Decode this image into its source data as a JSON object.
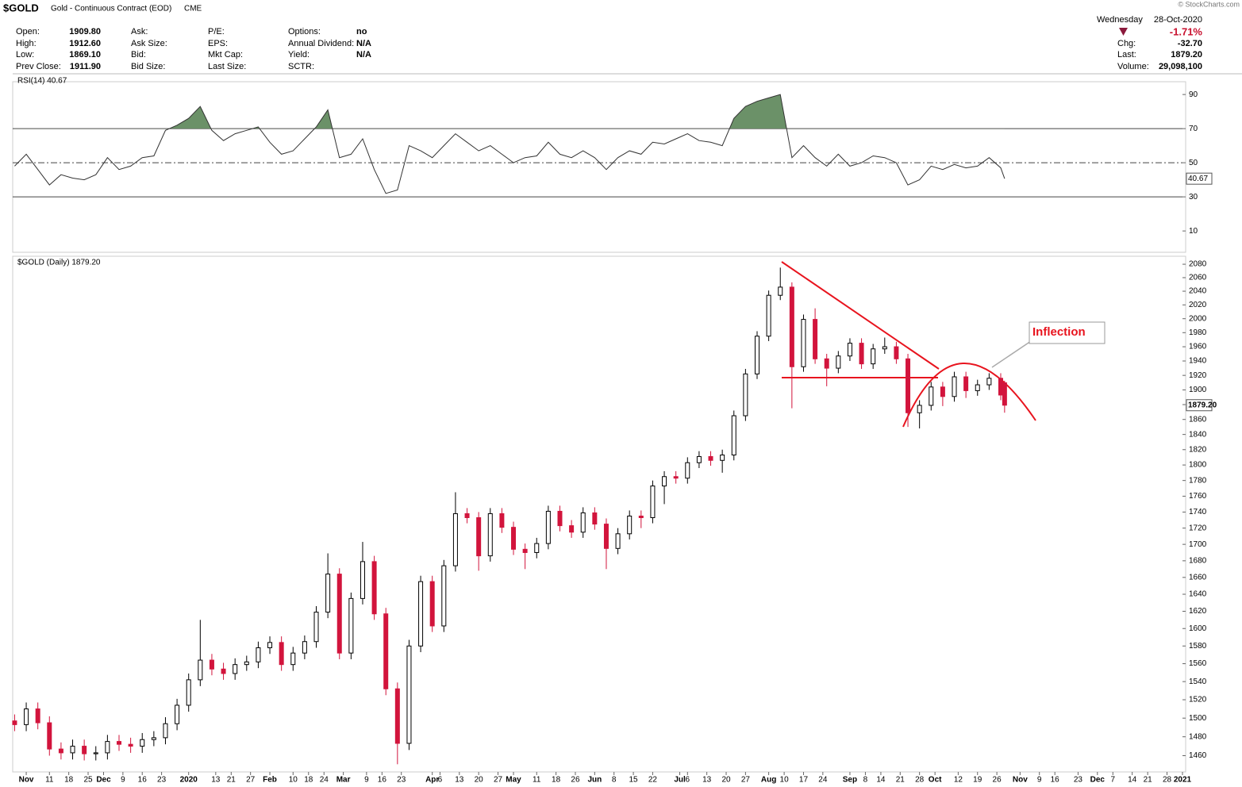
{
  "header": {
    "symbol": "$GOLD",
    "name": "Gold - Continuous Contract (EOD)",
    "exchange": "CME",
    "fields": [
      [
        {
          "label": "Open:",
          "value": "1909.80"
        },
        {
          "label": "High:",
          "value": "1912.60"
        },
        {
          "label": "Low:",
          "value": "1869.10"
        },
        {
          "label": "Prev Close:",
          "value": "1911.90"
        }
      ],
      [
        {
          "label": "Ask:"
        },
        {
          "label": "Ask Size:"
        },
        {
          "label": "Bid:"
        },
        {
          "label": "Bid Size:"
        }
      ],
      [
        {
          "label": "P/E:"
        },
        {
          "label": "EPS:"
        },
        {
          "label": "Mkt Cap:"
        },
        {
          "label": "Last Size:"
        }
      ],
      [
        {
          "label": "Options:",
          "value": "no"
        },
        {
          "label": "Annual Dividend:",
          "value": "N/A"
        },
        {
          "label": "Yield:",
          "value": "N/A"
        },
        {
          "label": "SCTR:"
        }
      ]
    ],
    "day": "Wednesday",
    "date": "28-Oct-2020",
    "change_pct": "-1.71%",
    "right_fields": [
      {
        "label": "Chg:",
        "value": "-32.70"
      },
      {
        "label": "Last:",
        "value": "1879.20"
      },
      {
        "label": "Volume:",
        "value": "29,098,100"
      }
    ],
    "watermark": "© StockCharts.com"
  },
  "chart_data": [
    {
      "type": "line",
      "title": "RSI(14) 40.67",
      "last_tag": "40.67",
      "color": "#333333",
      "fill_color": "#6b9168",
      "ylim": [
        -2.5,
        97.5
      ],
      "yticks": [
        10,
        30,
        50,
        70,
        90
      ],
      "xlim": [
        -0.5,
        302
      ],
      "overbought": 70,
      "oversold": 30,
      "midline": 50,
      "x": [
        0,
        3,
        6,
        9,
        12,
        15,
        18,
        21,
        24,
        27,
        30,
        33,
        36,
        39,
        42,
        45,
        48,
        51,
        54,
        57,
        60,
        63,
        66,
        69,
        72,
        75,
        78,
        81,
        84,
        87,
        90,
        93,
        96,
        99,
        102,
        105,
        108,
        111,
        114,
        117,
        120,
        123,
        126,
        129,
        132,
        135,
        138,
        141,
        144,
        147,
        150,
        153,
        156,
        159,
        162,
        165,
        168,
        171,
        174,
        177,
        180,
        183,
        186,
        189,
        192,
        195,
        198,
        201,
        204,
        207,
        210,
        213,
        216,
        219,
        222,
        225,
        228,
        231,
        234,
        237,
        240,
        243,
        246,
        249,
        252,
        255,
        256
      ],
      "values": [
        48,
        55,
        46,
        37,
        43,
        41,
        40,
        43,
        53,
        46,
        48,
        53,
        54,
        69,
        72,
        76,
        83,
        69,
        63,
        67,
        69,
        71,
        62,
        55,
        57,
        64,
        71,
        81,
        53,
        55,
        64,
        46,
        32,
        34,
        60,
        57,
        53,
        60,
        67,
        62,
        57,
        60,
        55,
        50,
        53,
        54,
        62,
        55,
        53,
        57,
        53,
        46,
        53,
        57,
        55,
        62,
        61,
        64,
        67,
        63,
        62,
        60,
        76,
        83,
        86,
        88,
        90,
        53,
        60,
        53,
        48,
        55,
        48,
        50,
        54,
        53,
        50,
        37,
        40,
        48,
        46,
        49,
        47,
        48,
        53,
        47,
        40.67
      ]
    },
    {
      "type": "candlestick",
      "title": "$GOLD (Daily) 1879.20",
      "last_tag": "1879.20",
      "up_color": "#000000",
      "down_color": "#d2143c",
      "log_scale": true,
      "ylim": [
        1443,
        2092
      ],
      "xlim": [
        -0.5,
        302
      ],
      "yticks": [
        1460,
        1480,
        1500,
        1520,
        1540,
        1560,
        1580,
        1600,
        1620,
        1640,
        1660,
        1680,
        1700,
        1720,
        1740,
        1760,
        1780,
        1800,
        1820,
        1840,
        1860,
        1880,
        1900,
        1920,
        1940,
        1960,
        1980,
        2000,
        2020,
        2040,
        2060,
        2080
      ],
      "xticks": [
        {
          "value": 3,
          "label": "Nov"
        },
        {
          "value": 9,
          "label": "11"
        },
        {
          "value": 14,
          "label": "18"
        },
        {
          "value": 19,
          "label": "25"
        },
        {
          "value": 23,
          "label": "Dec"
        },
        {
          "value": 28,
          "label": "9"
        },
        {
          "value": 33,
          "label": "16"
        },
        {
          "value": 38,
          "label": "23"
        },
        {
          "value": 45,
          "label": "2020"
        },
        {
          "value": 52,
          "label": "13"
        },
        {
          "value": 56,
          "label": "21"
        },
        {
          "value": 61,
          "label": "27"
        },
        {
          "value": 66,
          "label": "Feb"
        },
        {
          "value": 72,
          "label": "10"
        },
        {
          "value": 76,
          "label": "18"
        },
        {
          "value": 80,
          "label": "24"
        },
        {
          "value": 85,
          "label": "Mar"
        },
        {
          "value": 91,
          "label": "9"
        },
        {
          "value": 95,
          "label": "16"
        },
        {
          "value": 100,
          "label": "23"
        },
        {
          "value": 108,
          "label": "Apr"
        },
        {
          "value": 110,
          "label": "6"
        },
        {
          "value": 115,
          "label": "13"
        },
        {
          "value": 120,
          "label": "20"
        },
        {
          "value": 125,
          "label": "27"
        },
        {
          "value": 129,
          "label": "May"
        },
        {
          "value": 135,
          "label": "11"
        },
        {
          "value": 140,
          "label": "18"
        },
        {
          "value": 145,
          "label": "26"
        },
        {
          "value": 150,
          "label": "Jun"
        },
        {
          "value": 155,
          "label": "8"
        },
        {
          "value": 160,
          "label": "15"
        },
        {
          "value": 165,
          "label": "22"
        },
        {
          "value": 172,
          "label": "Jul"
        },
        {
          "value": 174,
          "label": "6"
        },
        {
          "value": 179,
          "label": "13"
        },
        {
          "value": 184,
          "label": "20"
        },
        {
          "value": 189,
          "label": "27"
        },
        {
          "value": 195,
          "label": "Aug"
        },
        {
          "value": 199,
          "label": "10"
        },
        {
          "value": 204,
          "label": "17"
        },
        {
          "value": 209,
          "label": "24"
        },
        {
          "value": 216,
          "label": "Sep"
        },
        {
          "value": 220,
          "label": "8"
        },
        {
          "value": 224,
          "label": "14"
        },
        {
          "value": 229,
          "label": "21"
        },
        {
          "value": 234,
          "label": "28"
        },
        {
          "value": 238,
          "label": "Oct"
        },
        {
          "value": 244,
          "label": "12"
        },
        {
          "value": 249,
          "label": "19"
        },
        {
          "value": 254,
          "label": "26"
        },
        {
          "value": 260,
          "label": "Nov"
        },
        {
          "value": 265,
          "label": "9"
        },
        {
          "value": 269,
          "label": "16"
        },
        {
          "value": 275,
          "label": "23"
        },
        {
          "value": 280,
          "label": "Dec"
        },
        {
          "value": 284,
          "label": "7"
        },
        {
          "value": 289,
          "label": "14"
        },
        {
          "value": 293,
          "label": "21"
        },
        {
          "value": 298,
          "label": "28"
        },
        {
          "value": 302,
          "label": "2021"
        }
      ],
      "x": [
        0,
        3,
        6,
        9,
        12,
        15,
        18,
        21,
        24,
        27,
        30,
        33,
        36,
        39,
        42,
        45,
        48,
        51,
        54,
        57,
        60,
        63,
        66,
        69,
        72,
        75,
        78,
        81,
        84,
        87,
        90,
        93,
        96,
        99,
        102,
        105,
        108,
        111,
        114,
        117,
        120,
        123,
        126,
        129,
        132,
        135,
        138,
        141,
        144,
        147,
        150,
        153,
        156,
        159,
        162,
        165,
        168,
        171,
        174,
        177,
        180,
        183,
        186,
        189,
        192,
        195,
        198,
        201,
        204,
        207,
        210,
        213,
        216,
        219,
        222,
        225,
        228,
        231,
        234,
        237,
        240,
        243,
        246,
        249,
        252,
        255,
        256
      ],
      "open": [
        1497,
        1493,
        1510,
        1495,
        1467,
        1463,
        1470,
        1462,
        1463,
        1475,
        1472,
        1470,
        1477,
        1479,
        1494,
        1514,
        1542,
        1564,
        1554,
        1549,
        1559,
        1562,
        1578,
        1584,
        1559,
        1572,
        1585,
        1619,
        1664,
        1572,
        1635,
        1679,
        1617,
        1532,
        1473,
        1580,
        1655,
        1603,
        1674,
        1738,
        1733,
        1686,
        1738,
        1721,
        1694,
        1690,
        1701,
        1741,
        1723,
        1715,
        1739,
        1725,
        1695,
        1713,
        1735,
        1733,
        1773,
        1785,
        1783,
        1803,
        1811,
        1806,
        1813,
        1865,
        1922,
        1975,
        2034,
        2046,
        1932,
        1999,
        1943,
        1930,
        1947,
        1965,
        1936,
        1957,
        1960,
        1943,
        1869,
        1879,
        1904,
        1891,
        1918,
        1899,
        1907,
        1916,
        1909.8
      ],
      "high": [
        1504,
        1517,
        1517,
        1502,
        1474,
        1477,
        1477,
        1470,
        1482,
        1482,
        1479,
        1484,
        1486,
        1501,
        1521,
        1549,
        1610,
        1571,
        1561,
        1566,
        1569,
        1585,
        1591,
        1591,
        1579,
        1592,
        1626,
        1689,
        1671,
        1642,
        1703,
        1686,
        1624,
        1539,
        1587,
        1662,
        1662,
        1681,
        1765,
        1745,
        1740,
        1745,
        1745,
        1728,
        1701,
        1708,
        1748,
        1748,
        1730,
        1746,
        1746,
        1732,
        1720,
        1742,
        1742,
        1780,
        1792,
        1792,
        1810,
        1818,
        1818,
        1820,
        1872,
        1929,
        1982,
        2041,
        2075,
        2053,
        2006,
        2015,
        1950,
        1954,
        1972,
        1972,
        1964,
        1973,
        1967,
        1950,
        1886,
        1911,
        1911,
        1925,
        1925,
        1914,
        1923,
        1923,
        1912.6
      ],
      "low": [
        1486,
        1486,
        1488,
        1460,
        1456,
        1456,
        1455,
        1455,
        1456,
        1465,
        1463,
        1463,
        1470,
        1472,
        1487,
        1507,
        1535,
        1547,
        1542,
        1542,
        1552,
        1555,
        1571,
        1552,
        1552,
        1565,
        1578,
        1612,
        1565,
        1565,
        1628,
        1610,
        1525,
        1451,
        1466,
        1573,
        1596,
        1596,
        1667,
        1726,
        1668,
        1679,
        1714,
        1687,
        1670,
        1683,
        1694,
        1716,
        1708,
        1708,
        1718,
        1670,
        1688,
        1706,
        1720,
        1726,
        1750,
        1776,
        1776,
        1796,
        1799,
        1790,
        1806,
        1858,
        1915,
        1968,
        2027,
        1875,
        1925,
        1936,
        1905,
        1923,
        1940,
        1929,
        1929,
        1950,
        1936,
        1850,
        1848,
        1872,
        1878,
        1884,
        1889,
        1892,
        1900,
        1886,
        1869.1
      ],
      "close": [
        1493,
        1510,
        1495,
        1467,
        1463,
        1470,
        1462,
        1463,
        1475,
        1472,
        1470,
        1477,
        1479,
        1494,
        1514,
        1542,
        1564,
        1554,
        1549,
        1559,
        1562,
        1578,
        1584,
        1559,
        1572,
        1585,
        1619,
        1664,
        1572,
        1635,
        1679,
        1617,
        1532,
        1473,
        1580,
        1655,
        1603,
        1674,
        1738,
        1733,
        1686,
        1738,
        1721,
        1694,
        1690,
        1701,
        1741,
        1723,
        1715,
        1739,
        1725,
        1695,
        1713,
        1735,
        1733,
        1773,
        1785,
        1783,
        1803,
        1811,
        1806,
        1813,
        1865,
        1922,
        1975,
        2034,
        2046,
        1932,
        1999,
        1943,
        1930,
        1947,
        1965,
        1936,
        1957,
        1960,
        1943,
        1869,
        1879,
        1904,
        1891,
        1918,
        1899,
        1907,
        1916,
        1893,
        1879.2
      ],
      "annotation": "Inflection"
    }
  ]
}
